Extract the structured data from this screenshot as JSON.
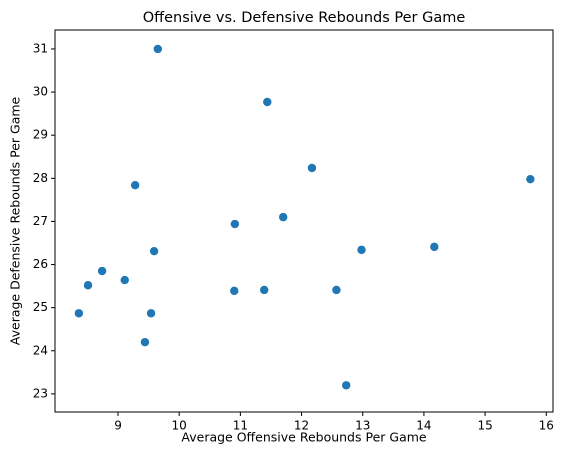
{
  "chart_data": {
    "type": "scatter",
    "title": "Offensive vs. Defensive Rebounds Per Game",
    "x_label": "Average Offensive Rebounds Per Game",
    "y_label": "Average Defensive Rebounds Per Game",
    "color": "#1f77b4",
    "x": [
      9.65,
      11.44,
      12.17,
      15.74,
      9.28,
      11.7,
      10.91,
      9.59,
      12.98,
      14.17,
      8.74,
      9.11,
      8.51,
      10.9,
      11.39,
      12.57,
      8.36,
      9.54,
      9.44,
      12.73
    ],
    "values": [
      31.0,
      29.77,
      28.24,
      27.98,
      27.84,
      27.1,
      26.94,
      26.31,
      26.34,
      26.41,
      25.85,
      25.64,
      25.52,
      25.39,
      25.41,
      25.41,
      24.87,
      24.87,
      24.2,
      23.2
    ],
    "xlim": [
      7.97,
      16.11
    ],
    "ylim": [
      22.58,
      31.44
    ],
    "xticks": [
      9,
      10,
      11,
      12,
      13,
      14,
      15,
      16
    ],
    "yticks": [
      23,
      24,
      25,
      26,
      27,
      28,
      29,
      30,
      31
    ]
  }
}
